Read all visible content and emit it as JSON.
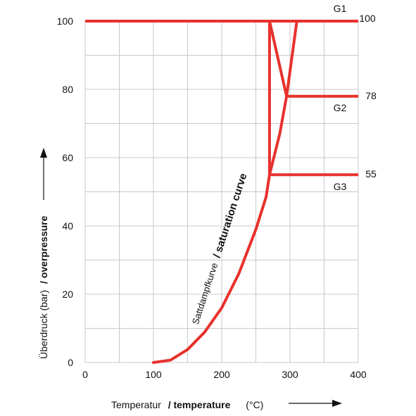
{
  "chart_data": {
    "type": "line",
    "xlabel_de": "Temperatur",
    "xlabel_en": "/ temperature",
    "xunit": "(°C)",
    "ylabel_de": "Überdruck (bar)",
    "ylabel_en": "/ overpressure",
    "xlim": [
      0,
      400
    ],
    "ylim": [
      0,
      100
    ],
    "x_ticks": [
      "0",
      "100",
      "200",
      "300",
      "400"
    ],
    "y_ticks": [
      "0",
      "20",
      "40",
      "60",
      "80",
      "100"
    ],
    "x_minor_step": 50,
    "y_minor_step": 10,
    "grid": true,
    "curve_label_de": "Sattdampfkurve",
    "curve_label_en": "/ saturation curve",
    "colors": {
      "line": "#e8312c",
      "grid": "#c8c8c8",
      "text": "#111111"
    },
    "series": [
      {
        "points": [
          [
            100,
            0
          ],
          [
            125,
            0.7
          ],
          [
            150,
            3.8
          ],
          [
            175,
            8.9
          ],
          [
            200,
            16
          ],
          [
            225,
            26
          ],
          [
            250,
            39
          ],
          [
            265,
            48.5
          ],
          [
            270,
            55
          ],
          [
            285,
            67
          ],
          [
            295,
            78
          ],
          [
            310,
            100
          ]
        ]
      }
    ],
    "lines": [
      {
        "id": "g1",
        "label": "G1",
        "value_label": "100",
        "points": [
          [
            0,
            100
          ],
          [
            400,
            100
          ]
        ]
      },
      {
        "id": "g2",
        "label": "G2",
        "value_label": "78",
        "points": [
          [
            295,
            78
          ],
          [
            400,
            78
          ]
        ]
      },
      {
        "id": "g3",
        "label": "G3",
        "value_label": "55",
        "points": [
          [
            270,
            55
          ],
          [
            400,
            55
          ]
        ]
      },
      {
        "id": "v270",
        "points": [
          [
            270,
            100
          ],
          [
            270,
            55
          ]
        ]
      },
      {
        "id": "diag",
        "points": [
          [
            270,
            100
          ],
          [
            295,
            78
          ]
        ]
      }
    ]
  }
}
